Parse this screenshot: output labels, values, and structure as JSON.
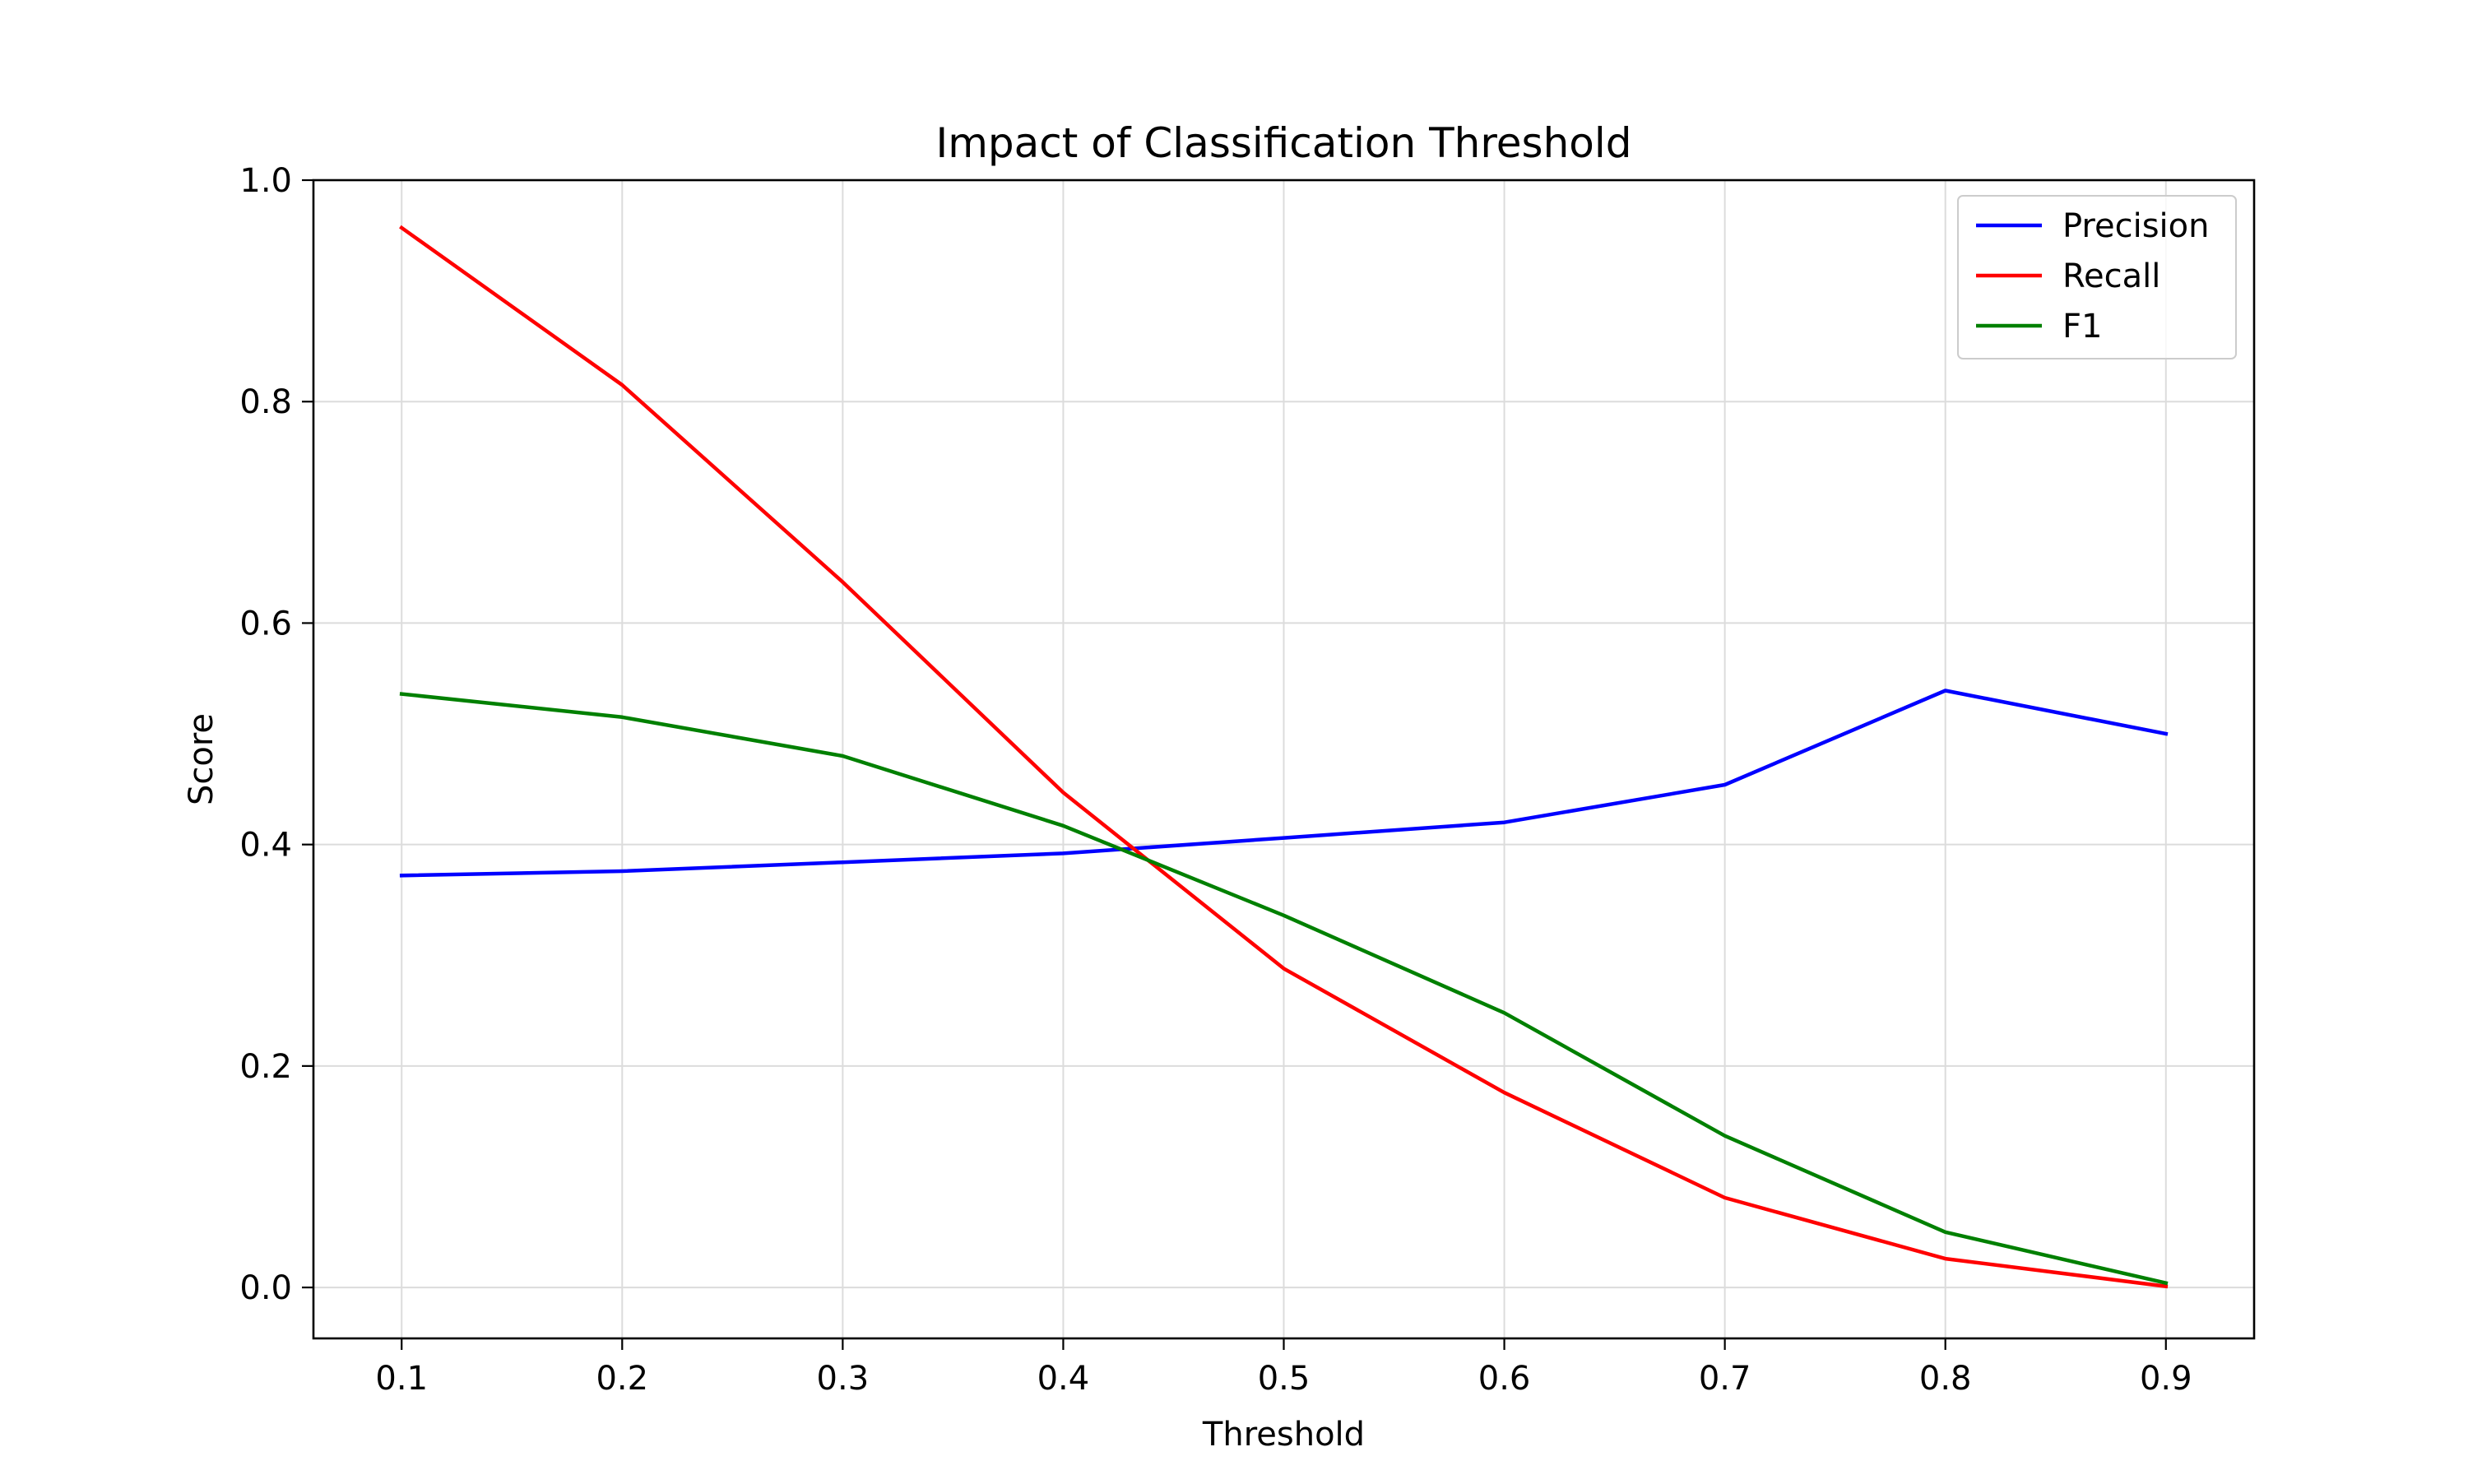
{
  "chart_data": {
    "type": "line",
    "title": "Impact of Classification Threshold",
    "xlabel": "Threshold",
    "ylabel": "Score",
    "x": [
      0.1,
      0.2,
      0.3,
      0.4,
      0.5,
      0.6,
      0.7,
      0.8,
      0.9
    ],
    "x_tick_labels": [
      "0.1",
      "0.2",
      "0.3",
      "0.4",
      "0.5",
      "0.6",
      "0.7",
      "0.8",
      "0.9"
    ],
    "y_tick_values": [
      0.0,
      0.2,
      0.4,
      0.6,
      0.8,
      1.0
    ],
    "y_tick_labels": [
      "0.0",
      "0.2",
      "0.4",
      "0.6",
      "0.8",
      "1.0"
    ],
    "xlim": [
      0.06,
      0.94
    ],
    "ylim": [
      -0.046,
      1.0
    ],
    "grid": true,
    "legend_position": "top-right",
    "series": [
      {
        "name": "Precision",
        "color": "#0000ff",
        "values": [
          0.372,
          0.376,
          0.384,
          0.392,
          0.406,
          0.42,
          0.454,
          0.539,
          0.5
        ]
      },
      {
        "name": "Recall",
        "color": "#ff0000",
        "values": [
          0.957,
          0.815,
          0.637,
          0.447,
          0.288,
          0.176,
          0.081,
          0.026,
          0.001
        ]
      },
      {
        "name": "F1",
        "color": "#008000",
        "values": [
          0.536,
          0.515,
          0.48,
          0.417,
          0.336,
          0.248,
          0.137,
          0.05,
          0.004
        ]
      }
    ]
  }
}
